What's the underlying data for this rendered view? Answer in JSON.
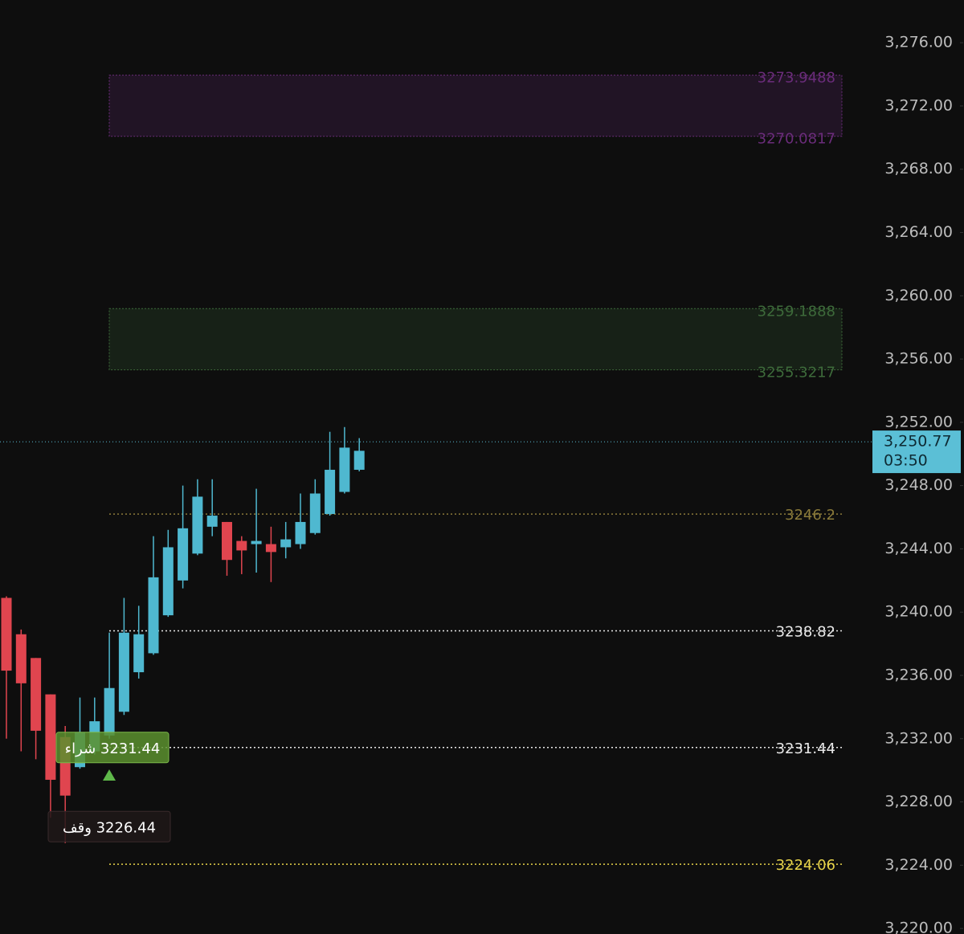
{
  "chart_data": {
    "type": "candlestick",
    "categories": [
      null,
      null,
      null,
      null,
      null,
      null,
      null,
      null,
      null,
      null,
      null,
      null,
      null,
      null,
      null,
      null,
      null,
      null,
      null,
      null,
      null,
      null,
      null,
      null,
      null
    ],
    "open": [
      3240.9,
      3238.6,
      3237.1,
      3234.8,
      3232.1,
      3230.2,
      3231.2,
      3232.2,
      3233.7,
      3236.2,
      3237.4,
      3239.8,
      3242.0,
      3243.7,
      3245.4,
      3245.7,
      3244.5,
      3244.3,
      3244.3,
      3244.1,
      3244.3,
      3245.0,
      3246.2,
      3247.6,
      3249.0
    ],
    "high": [
      3241.0,
      3238.9,
      3237.1,
      3234.8,
      3232.8,
      3234.6,
      3234.6,
      3238.7,
      3240.9,
      3240.4,
      3244.8,
      3245.2,
      3248.0,
      3248.4,
      3248.4,
      3245.7,
      3244.8,
      3247.8,
      3245.4,
      3245.7,
      3247.5,
      3248.4,
      3251.4,
      3251.7,
      3251.0
    ],
    "low": [
      3232.0,
      3231.2,
      3230.7,
      3227.0,
      3225.4,
      3230.1,
      3231.0,
      3232.0,
      3233.5,
      3235.8,
      3237.3,
      3239.7,
      3241.5,
      3243.6,
      3244.8,
      3242.3,
      3242.4,
      3242.5,
      3241.9,
      3243.4,
      3244.0,
      3244.9,
      3246.1,
      3247.5,
      3248.9
    ],
    "close": [
      3236.3,
      3235.5,
      3232.5,
      3229.4,
      3228.4,
      3232.4,
      3233.1,
      3235.2,
      3238.7,
      3238.6,
      3242.2,
      3244.1,
      3245.3,
      3247.3,
      3246.1,
      3243.3,
      3243.9,
      3244.5,
      3243.8,
      3244.6,
      3245.7,
      3247.5,
      3249.0,
      3250.4,
      3250.2
    ],
    "up_color": "#4fb8d0",
    "down_color": "#e0454f",
    "ylim": [
      3219.65,
      3278.7
    ],
    "yticks": [
      {
        "value": 3276,
        "label": "3,276.00"
      },
      {
        "value": 3272,
        "label": "3,272.00"
      },
      {
        "value": 3268,
        "label": "3,268.00"
      },
      {
        "value": 3264,
        "label": "3,264.00"
      },
      {
        "value": 3260,
        "label": "3,260.00"
      },
      {
        "value": 3256,
        "label": "3,256.00"
      },
      {
        "value": 3252,
        "label": "3,252.00"
      },
      {
        "value": 3248,
        "label": "3,248.00"
      },
      {
        "value": 3244,
        "label": "3,244.00"
      },
      {
        "value": 3240,
        "label": "3,240.00"
      },
      {
        "value": 3236,
        "label": "3,236.00"
      },
      {
        "value": 3232,
        "label": "3,232.00"
      },
      {
        "value": 3228,
        "label": "3,228.00"
      },
      {
        "value": 3224,
        "label": "3,224.00"
      },
      {
        "value": 3220,
        "label": "3,220.00"
      }
    ],
    "current_price": {
      "value": 3250.77,
      "label": "3,250.77",
      "time": "03:50",
      "color": "#5bbfd6"
    },
    "zones": [
      {
        "top": 3273.9488,
        "bottom": 3270.0817,
        "color": "#6a2c7a"
      },
      {
        "top": 3259.1888,
        "bottom": 3255.3217,
        "color": "#3d6a3a"
      }
    ],
    "levels": [
      {
        "value": 3246.2,
        "color": "#8a7a3a"
      },
      {
        "value": 3238.82,
        "color": "#e8e8e8"
      },
      {
        "value": 3231.44,
        "color": "#e8e8e8"
      },
      {
        "value": 3224.06,
        "color": "#e6d24a"
      }
    ],
    "orders": [
      {
        "label": "3231.44 شراء",
        "price": 3231.44,
        "color": "#5a8f2e"
      },
      {
        "label": "3226.44 وقف",
        "price": 3226.44,
        "color": "#1e1718"
      }
    ]
  }
}
